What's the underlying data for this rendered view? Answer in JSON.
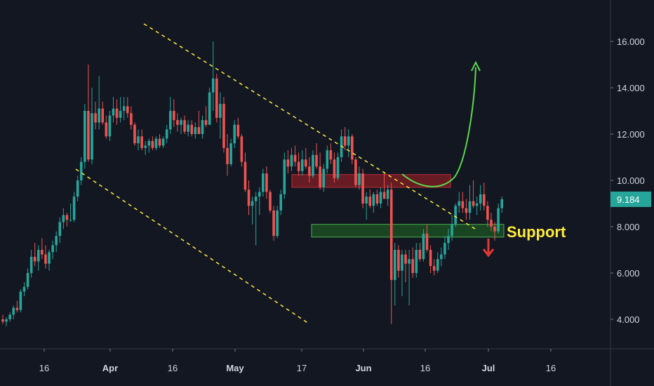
{
  "chart_data": {
    "type": "candlestick",
    "title": "",
    "ylim": [
      2.9,
      17.5
    ],
    "y_ticks": [
      "4.000",
      "6.000",
      "8.000",
      "10.000",
      "12.000",
      "14.000",
      "16.000"
    ],
    "x_ticks": [
      {
        "label": "16",
        "bold": false
      },
      {
        "label": "Apr",
        "bold": true
      },
      {
        "label": "16",
        "bold": false
      },
      {
        "label": "May",
        "bold": true
      },
      {
        "label": "17",
        "bold": false
      },
      {
        "label": "Jun",
        "bold": true
      },
      {
        "label": "16",
        "bold": false
      },
      {
        "label": "Jul",
        "bold": true
      },
      {
        "label": "16",
        "bold": false
      }
    ],
    "last_price": "9.184",
    "colors": {
      "background": "#131722",
      "up": "#26a69a",
      "down": "#ef5350",
      "trendline": "#ffeb3b",
      "forecast_up": "#4caf50",
      "forecast_down": "#e53935",
      "resistance_zone": "#8b1e24",
      "support_zone": "#1e5a24",
      "price_label": "#26a69a"
    },
    "annotations": {
      "support_label": "Support"
    },
    "zones": [
      {
        "name": "resistance",
        "y_low": 9.7,
        "y_high": 10.25
      },
      {
        "name": "support",
        "y_low": 7.55,
        "y_high": 8.1
      }
    ],
    "candles": [
      [
        4.0,
        4.2,
        3.8,
        3.9
      ],
      [
        3.9,
        4.1,
        3.7,
        4.0
      ],
      [
        4.0,
        4.3,
        3.9,
        4.2
      ],
      [
        4.2,
        4.6,
        4.0,
        4.5
      ],
      [
        4.5,
        4.8,
        4.3,
        4.4
      ],
      [
        4.4,
        5.3,
        4.3,
        5.2
      ],
      [
        5.2,
        5.6,
        5.0,
        5.4
      ],
      [
        5.4,
        6.2,
        5.3,
        6.0
      ],
      [
        6.0,
        7.0,
        5.8,
        6.7
      ],
      [
        6.7,
        7.3,
        6.3,
        6.5
      ],
      [
        6.5,
        7.2,
        6.1,
        7.0
      ],
      [
        7.0,
        7.5,
        6.6,
        6.8
      ],
      [
        6.8,
        7.2,
        6.2,
        6.4
      ],
      [
        6.4,
        7.0,
        6.1,
        6.9
      ],
      [
        6.9,
        7.4,
        6.6,
        7.2
      ],
      [
        7.2,
        7.8,
        6.9,
        7.6
      ],
      [
        7.6,
        8.4,
        7.3,
        8.2
      ],
      [
        8.2,
        8.8,
        7.9,
        8.5
      ],
      [
        8.5,
        8.6,
        8.0,
        8.3
      ],
      [
        8.3,
        9.0,
        8.2,
        8.3
      ],
      [
        8.3,
        9.5,
        8.2,
        9.3
      ],
      [
        9.3,
        10.2,
        9.1,
        10.0
      ],
      [
        10.0,
        11.0,
        9.8,
        10.8
      ],
      [
        10.8,
        13.3,
        10.5,
        13.0
      ],
      [
        13.0,
        15.0,
        10.8,
        10.9
      ],
      [
        10.9,
        14.0,
        10.7,
        12.9
      ],
      [
        12.9,
        13.4,
        12.2,
        12.5
      ],
      [
        12.5,
        14.5,
        12.2,
        13.1
      ],
      [
        13.1,
        13.4,
        12.4,
        12.5
      ],
      [
        12.5,
        12.8,
        11.8,
        11.9
      ],
      [
        11.9,
        13.0,
        11.7,
        12.8
      ],
      [
        12.8,
        13.6,
        12.5,
        13.1
      ],
      [
        13.1,
        13.5,
        12.4,
        12.7
      ],
      [
        12.7,
        13.6,
        12.5,
        13.0
      ],
      [
        13.0,
        13.6,
        12.6,
        13.2
      ],
      [
        13.2,
        13.6,
        12.7,
        12.9
      ],
      [
        12.9,
        13.2,
        12.2,
        12.4
      ],
      [
        12.4,
        12.5,
        11.5,
        11.6
      ],
      [
        11.6,
        12.2,
        11.3,
        11.9
      ],
      [
        11.9,
        12.2,
        11.3,
        11.4
      ],
      [
        11.4,
        11.7,
        11.1,
        11.5
      ],
      [
        11.5,
        11.8,
        11.2,
        11.7
      ],
      [
        11.7,
        11.9,
        11.3,
        11.4
      ],
      [
        11.4,
        11.9,
        11.3,
        11.8
      ],
      [
        11.8,
        12.0,
        11.4,
        11.5
      ],
      [
        11.5,
        11.9,
        11.4,
        11.8
      ],
      [
        11.8,
        12.4,
        11.6,
        12.2
      ],
      [
        12.2,
        13.6,
        12.0,
        13.0
      ],
      [
        13.0,
        13.5,
        12.3,
        12.6
      ],
      [
        12.6,
        12.9,
        12.1,
        12.4
      ],
      [
        12.4,
        12.7,
        12.0,
        12.6
      ],
      [
        12.6,
        12.8,
        12.0,
        12.1
      ],
      [
        12.1,
        12.6,
        11.9,
        12.4
      ],
      [
        12.4,
        12.6,
        11.9,
        12.0
      ],
      [
        12.0,
        12.5,
        11.8,
        12.3
      ],
      [
        12.3,
        13.0,
        12.1,
        12.0
      ],
      [
        12.0,
        12.8,
        11.8,
        12.6
      ],
      [
        12.6,
        13.2,
        12.3,
        12.4
      ],
      [
        12.4,
        14.0,
        12.4,
        13.8
      ],
      [
        13.8,
        16.0,
        13.0,
        14.4
      ],
      [
        14.4,
        14.6,
        12.5,
        12.7
      ],
      [
        12.7,
        13.8,
        11.8,
        13.3
      ],
      [
        13.3,
        13.6,
        11.2,
        11.4
      ],
      [
        11.4,
        12.0,
        10.2,
        10.7
      ],
      [
        10.7,
        11.8,
        10.6,
        11.6
      ],
      [
        11.6,
        12.6,
        11.4,
        12.4
      ],
      [
        12.4,
        12.7,
        11.8,
        11.9
      ],
      [
        11.9,
        12.0,
        10.6,
        10.8
      ],
      [
        10.8,
        11.2,
        9.5,
        9.6
      ],
      [
        9.6,
        10.0,
        8.5,
        8.9
      ],
      [
        8.9,
        9.3,
        8.1,
        9.1
      ],
      [
        9.1,
        9.5,
        7.2,
        9.3
      ],
      [
        9.3,
        9.7,
        8.5,
        9.5
      ],
      [
        9.5,
        10.5,
        9.3,
        10.3
      ],
      [
        10.3,
        10.6,
        9.2,
        9.5
      ],
      [
        9.5,
        9.6,
        8.6,
        8.7
      ],
      [
        8.7,
        8.9,
        7.4,
        7.6
      ],
      [
        7.6,
        8.9,
        7.5,
        8.7
      ],
      [
        8.7,
        9.6,
        8.5,
        9.4
      ],
      [
        9.4,
        11.2,
        9.2,
        10.9
      ],
      [
        10.9,
        11.3,
        10.3,
        10.6
      ],
      [
        10.6,
        11.4,
        10.4,
        11.1
      ],
      [
        11.1,
        11.5,
        10.6,
        10.8
      ],
      [
        10.8,
        11.2,
        10.2,
        10.4
      ],
      [
        10.4,
        11.3,
        10.2,
        10.9
      ],
      [
        10.9,
        11.4,
        10.5,
        10.6
      ],
      [
        10.6,
        11.0,
        9.9,
        10.2
      ],
      [
        10.2,
        11.3,
        10.1,
        11.1
      ],
      [
        11.1,
        11.6,
        10.5,
        10.6
      ],
      [
        10.6,
        11.2,
        9.6,
        9.7
      ],
      [
        9.7,
        10.7,
        9.5,
        10.5
      ],
      [
        10.5,
        11.5,
        10.3,
        11.3
      ],
      [
        11.3,
        11.6,
        10.7,
        10.9
      ],
      [
        10.9,
        11.2,
        9.9,
        10.1
      ],
      [
        10.1,
        11.2,
        10.0,
        11.0
      ],
      [
        11.0,
        12.2,
        10.8,
        11.9
      ],
      [
        11.9,
        12.3,
        11.3,
        11.5
      ],
      [
        11.5,
        12.2,
        11.0,
        11.9
      ],
      [
        11.9,
        12.0,
        10.7,
        10.9
      ],
      [
        10.9,
        11.0,
        9.7,
        9.8
      ],
      [
        9.8,
        10.6,
        9.6,
        10.3
      ],
      [
        10.3,
        10.5,
        8.8,
        9.0
      ],
      [
        9.0,
        9.5,
        8.3,
        9.3
      ],
      [
        9.3,
        9.6,
        8.8,
        8.9
      ],
      [
        8.9,
        9.5,
        8.6,
        9.4
      ],
      [
        9.4,
        9.6,
        8.9,
        9.0
      ],
      [
        9.0,
        9.7,
        8.8,
        9.5
      ],
      [
        9.5,
        10.3,
        9.3,
        9.2
      ],
      [
        9.2,
        9.8,
        8.9,
        9.6
      ],
      [
        9.6,
        9.9,
        3.8,
        5.7
      ],
      [
        5.7,
        7.3,
        4.6,
        7.0
      ],
      [
        7.0,
        7.2,
        5.8,
        6.1
      ],
      [
        6.1,
        7.0,
        5.0,
        6.8
      ],
      [
        6.8,
        7.0,
        5.6,
        6.4
      ],
      [
        6.4,
        7.0,
        4.6,
        6.6
      ],
      [
        6.6,
        7.1,
        5.8,
        6.0
      ],
      [
        6.0,
        7.3,
        5.8,
        7.0
      ],
      [
        7.0,
        7.3,
        6.5,
        6.6
      ],
      [
        6.6,
        7.9,
        6.5,
        7.7
      ],
      [
        7.7,
        8.1,
        6.9,
        7.0
      ],
      [
        7.0,
        7.2,
        6.0,
        6.3
      ],
      [
        6.3,
        6.6,
        5.9,
        6.1
      ],
      [
        6.1,
        6.9,
        6.0,
        6.6
      ],
      [
        6.6,
        7.1,
        6.3,
        6.8
      ],
      [
        6.8,
        7.6,
        6.6,
        7.3
      ],
      [
        7.3,
        7.9,
        7.0,
        7.6
      ],
      [
        7.6,
        8.5,
        7.4,
        8.1
      ],
      [
        8.1,
        9.0,
        8.0,
        8.9
      ],
      [
        8.9,
        9.5,
        8.6,
        9.1
      ],
      [
        9.1,
        9.5,
        8.6,
        8.8
      ],
      [
        8.8,
        9.2,
        8.3,
        8.6
      ],
      [
        8.6,
        9.8,
        8.3,
        9.1
      ],
      [
        9.1,
        10.0,
        8.8,
        8.9
      ],
      [
        8.9,
        9.3,
        8.5,
        9.0
      ],
      [
        9.0,
        9.8,
        8.7,
        9.4
      ],
      [
        9.4,
        9.9,
        8.7,
        8.9
      ],
      [
        8.9,
        9.1,
        8.0,
        8.3
      ],
      [
        8.3,
        8.6,
        7.8,
        8.0
      ],
      [
        8.0,
        8.2,
        7.4,
        7.8
      ],
      [
        7.8,
        9.0,
        7.7,
        8.8
      ],
      [
        8.8,
        9.3,
        8.6,
        9.184
      ]
    ]
  }
}
